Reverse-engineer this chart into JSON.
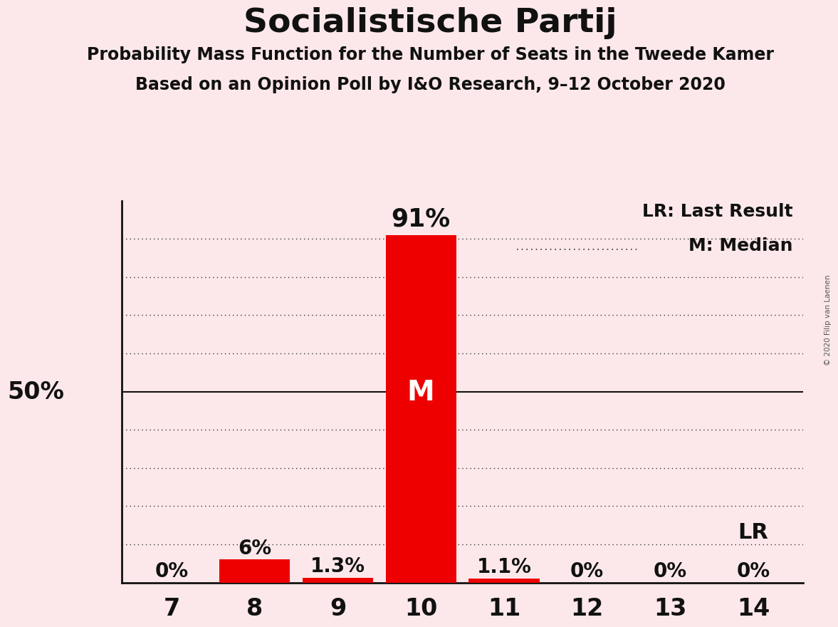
{
  "title": "Socialistische Partij",
  "subtitle1": "Probability Mass Function for the Number of Seats in the Tweede Kamer",
  "subtitle2": "Based on an Opinion Poll by I&O Research, 9–12 October 2020",
  "copyright": "© 2020 Filip van Laenen",
  "categories": [
    7,
    8,
    9,
    10,
    11,
    12,
    13,
    14
  ],
  "values": [
    0.0,
    6.0,
    1.3,
    91.0,
    1.1,
    0.0,
    0.0,
    0.0
  ],
  "labels": [
    "0%",
    "6%",
    "1.3%",
    "91%",
    "1.1%",
    "0%",
    "0%",
    "0%"
  ],
  "bar_color": "#ee0000",
  "background_color": "#fce8ea",
  "ylim": [
    0,
    100
  ],
  "ylabel_50": "50%",
  "median_seat": 10,
  "lr_seat": 14,
  "legend_lr": "LR: Last Result",
  "legend_m": "M: Median",
  "title_fontsize": 34,
  "subtitle_fontsize": 17,
  "label_fontsize": 20,
  "axis_fontsize": 24,
  "grid_values": [
    10,
    20,
    30,
    40,
    50,
    60,
    70,
    80,
    90
  ]
}
